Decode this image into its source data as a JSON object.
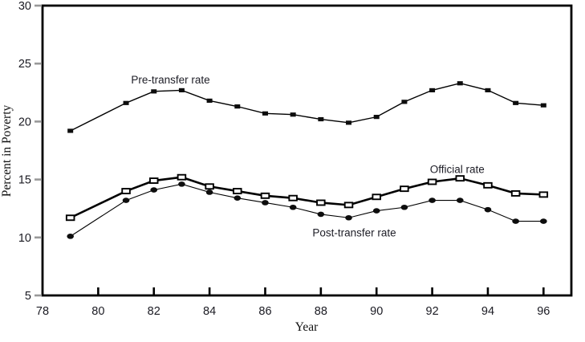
{
  "chart_data": {
    "type": "line",
    "title": "",
    "xlabel": "Year",
    "ylabel": "Percent in Poverty",
    "xlim": [
      78,
      97
    ],
    "ylim": [
      5,
      30
    ],
    "x_ticks": [
      78,
      80,
      82,
      84,
      86,
      88,
      90,
      92,
      94,
      96
    ],
    "y_ticks": [
      5,
      10,
      15,
      20,
      25,
      30
    ],
    "grid": false,
    "legend_position": "inline-labels",
    "x": [
      79,
      81,
      82,
      83,
      84,
      85,
      86,
      87,
      88,
      89,
      90,
      91,
      92,
      93,
      94,
      95,
      96
    ],
    "series": [
      {
        "name": "Pre-transfer rate",
        "marker": "filled-square",
        "line_width": 1.4,
        "values": [
          19.2,
          21.6,
          22.6,
          22.7,
          21.8,
          21.3,
          20.7,
          20.6,
          20.2,
          19.9,
          20.4,
          21.7,
          22.7,
          23.3,
          22.7,
          21.6,
          21.4
        ]
      },
      {
        "name": "Official rate",
        "marker": "open-square",
        "line_width": 2.6,
        "values": [
          11.7,
          14.0,
          14.9,
          15.2,
          14.4,
          14.0,
          13.6,
          13.4,
          13.0,
          12.8,
          13.5,
          14.2,
          14.8,
          15.1,
          14.5,
          13.8,
          13.7
        ]
      },
      {
        "name": "Post-transfer rate",
        "marker": "filled-circle",
        "line_width": 1.1,
        "values": [
          10.1,
          13.2,
          14.1,
          14.6,
          13.9,
          13.4,
          13.0,
          12.6,
          12.0,
          11.7,
          12.3,
          12.6,
          13.2,
          13.2,
          12.4,
          11.4,
          11.4
        ]
      }
    ],
    "annotations": [
      {
        "text": "Pre-transfer rate",
        "x": 82.6,
        "y": 23.55
      },
      {
        "text": "Official rate",
        "x": 92.9,
        "y": 15.85
      },
      {
        "text": "Post-transfer rate",
        "x": 89.2,
        "y": 10.35
      }
    ]
  },
  "colors": {
    "line": "#000000",
    "marker_fill": "#0d0d0d",
    "frame": "#000000",
    "y_tick": "#999999",
    "x_tick": "#000000",
    "text": "#1a1a22"
  }
}
